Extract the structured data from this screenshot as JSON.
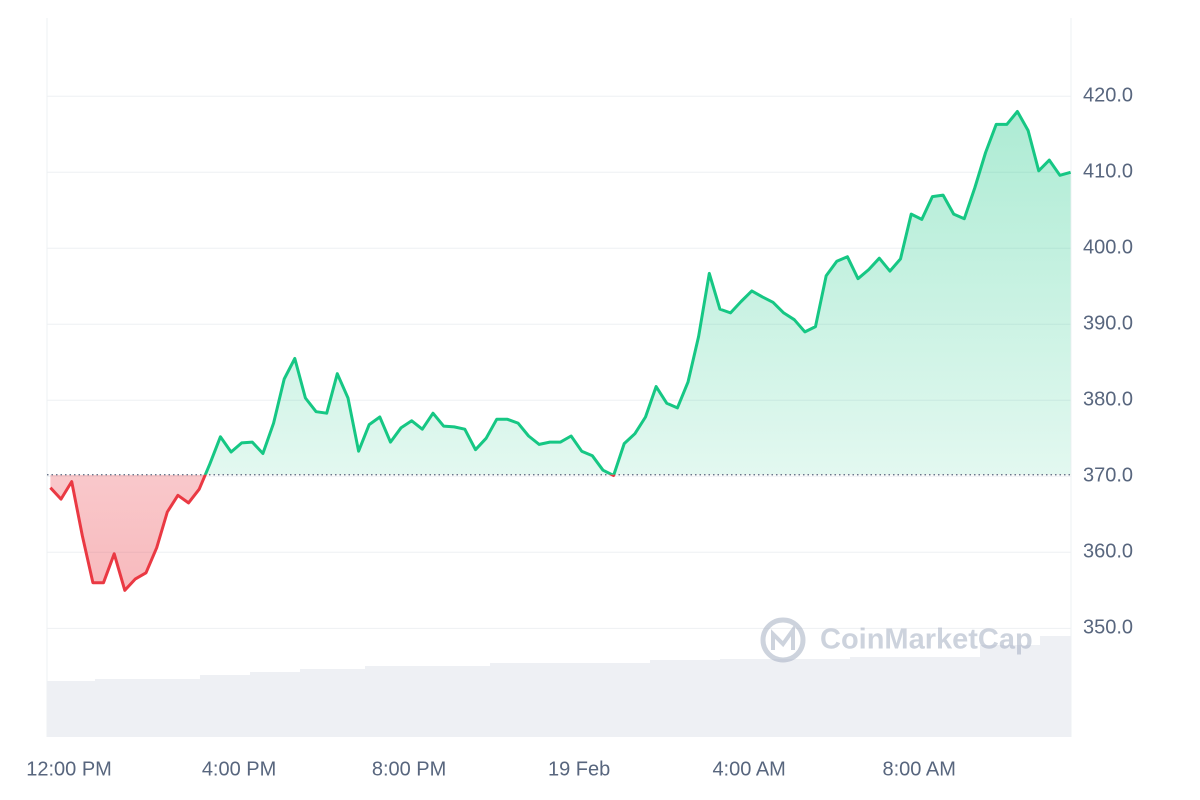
{
  "chart_data": {
    "type": "line",
    "watermark": "CoinMarketCap",
    "x": [
      -0.25,
      0,
      0.25,
      0.5,
      0.75,
      1,
      1.25,
      1.5,
      1.75,
      2,
      2.25,
      2.5,
      2.75,
      3,
      3.25,
      3.5,
      3.75,
      4,
      4.25,
      4.5,
      4.75,
      5,
      5.25,
      5.5,
      5.75,
      6,
      6.25,
      6.5,
      6.75,
      7,
      7.25,
      7.5,
      7.75,
      8,
      8.25,
      8.5,
      8.75,
      9,
      9.25,
      9.5,
      9.75,
      10,
      10.25,
      10.5,
      10.75,
      11,
      11.25,
      11.5,
      11.75,
      12,
      12.25,
      12.5,
      12.75,
      13,
      13.25,
      13.5,
      13.75,
      14,
      14.25,
      14.5,
      14.75,
      15,
      15.25,
      15.5,
      15.75,
      16,
      16.25,
      16.5,
      16.75,
      17,
      17.25,
      17.5,
      17.75,
      18,
      18.25,
      18.5,
      18.75,
      19,
      19.25,
      19.5,
      19.75,
      20,
      20.25,
      20.5,
      20.75,
      21,
      21.25,
      21.5,
      21.75,
      22,
      22.25,
      22.5,
      22.75,
      23,
      23.25,
      23.5,
      23.75
    ],
    "values": [
      368.5,
      367,
      369.3,
      362.2,
      356,
      356,
      359.8,
      355,
      356.5,
      357.3,
      360.6,
      365.3,
      367.5,
      366.5,
      368.3,
      371.6,
      375.2,
      373.2,
      374.4,
      374.5,
      373,
      377,
      382.8,
      385.5,
      380.3,
      378.5,
      378.3,
      383.5,
      380.3,
      373.3,
      376.8,
      377.8,
      374.5,
      376.4,
      377.3,
      376.2,
      378.3,
      376.6,
      376.5,
      376.2,
      373.5,
      375,
      377.5,
      377.5,
      377,
      375.3,
      374.2,
      374.5,
      374.5,
      375.3,
      373.3,
      372.7,
      370.8,
      370.1,
      374.3,
      375.6,
      377.8,
      381.8,
      379.6,
      379,
      382.4,
      388.4,
      396.7,
      392,
      391.5,
      393,
      394.4,
      393.6,
      392.9,
      391.5,
      390.6,
      389,
      389.7,
      396.4,
      398.3,
      398.9,
      396,
      397.2,
      398.7,
      397,
      398.6,
      404.5,
      403.8,
      406.8,
      407,
      404.5,
      403.9,
      408,
      412.6,
      416.3,
      416.3,
      418,
      415.5,
      410.2,
      411.6,
      409.6,
      410
    ],
    "baseline": 370.2,
    "color_up": "#16c784",
    "color_down": "#ea3943",
    "xlim": [
      -0.33,
      23.76
    ],
    "ylim": [
      335.7,
      430.3
    ],
    "xticks": [
      {
        "value": 0,
        "label": "12:00 PM"
      },
      {
        "value": 4,
        "label": "4:00 PM"
      },
      {
        "value": 8,
        "label": "8:00 PM"
      },
      {
        "value": 12,
        "label": "19 Feb"
      },
      {
        "value": 16,
        "label": "4:00 AM"
      },
      {
        "value": 20,
        "label": "8:00 AM"
      }
    ],
    "yticks": [
      {
        "value": 350,
        "label": "350.0"
      },
      {
        "value": 360,
        "label": "360.0"
      },
      {
        "value": 370,
        "label": "370.0"
      },
      {
        "value": 380,
        "label": "380.0"
      },
      {
        "value": 390,
        "label": "390.0"
      },
      {
        "value": 400,
        "label": "400.0"
      },
      {
        "value": 410,
        "label": "410.0"
      },
      {
        "value": 420,
        "label": "420.0"
      }
    ],
    "grid": true
  }
}
